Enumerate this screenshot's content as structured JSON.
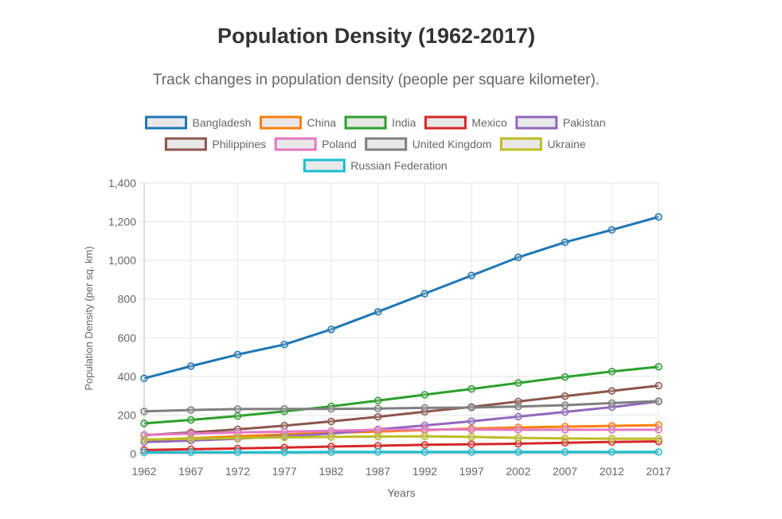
{
  "header": {
    "title": "Population Density (1962-2017)",
    "subtitle": "Track changes in population density (people per square kilometer)."
  },
  "chart_data": {
    "type": "line",
    "title": "Population Density (1962-2017)",
    "subtitle": "Track changes in population density (people per square kilometer).",
    "xlabel": "Years",
    "ylabel": "Population Density (per sq. km)",
    "x": [
      "1962",
      "1967",
      "1972",
      "1977",
      "1982",
      "1987",
      "1992",
      "1997",
      "2002",
      "2007",
      "2012",
      "2017"
    ],
    "ylim": [
      0,
      1400
    ],
    "y_ticks": [
      "0",
      "200",
      "400",
      "600",
      "800",
      "1,000",
      "1,200",
      "1,400"
    ],
    "grid": true,
    "legend_position": "top",
    "series": [
      {
        "name": "Bangladesh",
        "color": "#1f77b4",
        "values": [
          390,
          453,
          513,
          565,
          643,
          734,
          828,
          922,
          1016,
          1094,
          1158,
          1225
        ]
      },
      {
        "name": "China",
        "color": "#ff7f0e",
        "values": [
          72,
          80,
          90,
          100,
          108,
          115,
          122,
          130,
          136,
          140,
          144,
          148
        ]
      },
      {
        "name": "India",
        "color": "#2ca02c",
        "values": [
          157,
          175,
          195,
          219,
          245,
          275,
          305,
          335,
          366,
          397,
          425,
          450
        ]
      },
      {
        "name": "Mexico",
        "color": "#d62728",
        "values": [
          19,
          23,
          27,
          32,
          37,
          41,
          46,
          49,
          52,
          57,
          61,
          64
        ]
      },
      {
        "name": "Pakistan",
        "color": "#9467bd",
        "values": [
          60,
          68,
          78,
          91,
          104,
          126,
          146,
          168,
          192,
          216,
          241,
          270
        ]
      },
      {
        "name": "Philippines",
        "color": "#8c564b",
        "values": [
          96,
          110,
          126,
          145,
          167,
          191,
          217,
          242,
          270,
          298,
          325,
          352
        ]
      },
      {
        "name": "Poland",
        "color": "#e377c2",
        "values": [
          98,
          104,
          110,
          114,
          118,
          124,
          125,
          125,
          124,
          124,
          124,
          124
        ]
      },
      {
        "name": "United Kingdom",
        "color": "#7f7f7f",
        "values": [
          219,
          226,
          231,
          232,
          232,
          234,
          237,
          239,
          244,
          251,
          262,
          272
        ]
      },
      {
        "name": "Ukraine",
        "color": "#bcbd22",
        "values": [
          73,
          77,
          81,
          85,
          87,
          89,
          90,
          87,
          82,
          79,
          78,
          77
        ]
      },
      {
        "name": "Russian Federation",
        "color": "#17becf",
        "values": [
          7,
          8,
          8,
          8,
          9,
          9,
          9,
          9,
          9,
          9,
          9,
          9
        ]
      }
    ]
  }
}
